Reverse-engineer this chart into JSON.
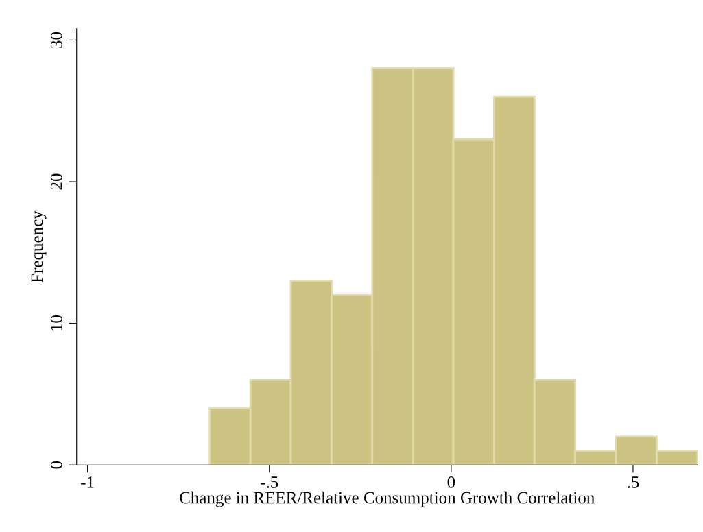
{
  "chart_data": {
    "type": "histogram",
    "xlabel": "Change in REER/Relative Consumption Growth Correlation",
    "ylabel": "Frequency",
    "bins": [
      -0.664,
      -0.552,
      -0.441,
      -0.329,
      -0.217,
      -0.105,
      0.006,
      0.118,
      0.229,
      0.341,
      0.453,
      0.565,
      0.677
    ],
    "values": [
      4,
      6,
      13,
      12,
      28,
      28,
      23,
      26,
      6,
      1,
      2,
      1
    ],
    "color": "#ccc382",
    "xlim": [
      -1.03,
      0.677
    ],
    "ylim": [
      0,
      30.8
    ],
    "xticks": [
      {
        "value": -1,
        "label": "-1"
      },
      {
        "value": -0.5,
        "label": "-.5"
      },
      0,
      {
        "value": 0.5,
        "label": ".5"
      }
    ],
    "yticks": [
      0,
      10,
      20,
      30
    ],
    "grid": false,
    "legend": false
  }
}
